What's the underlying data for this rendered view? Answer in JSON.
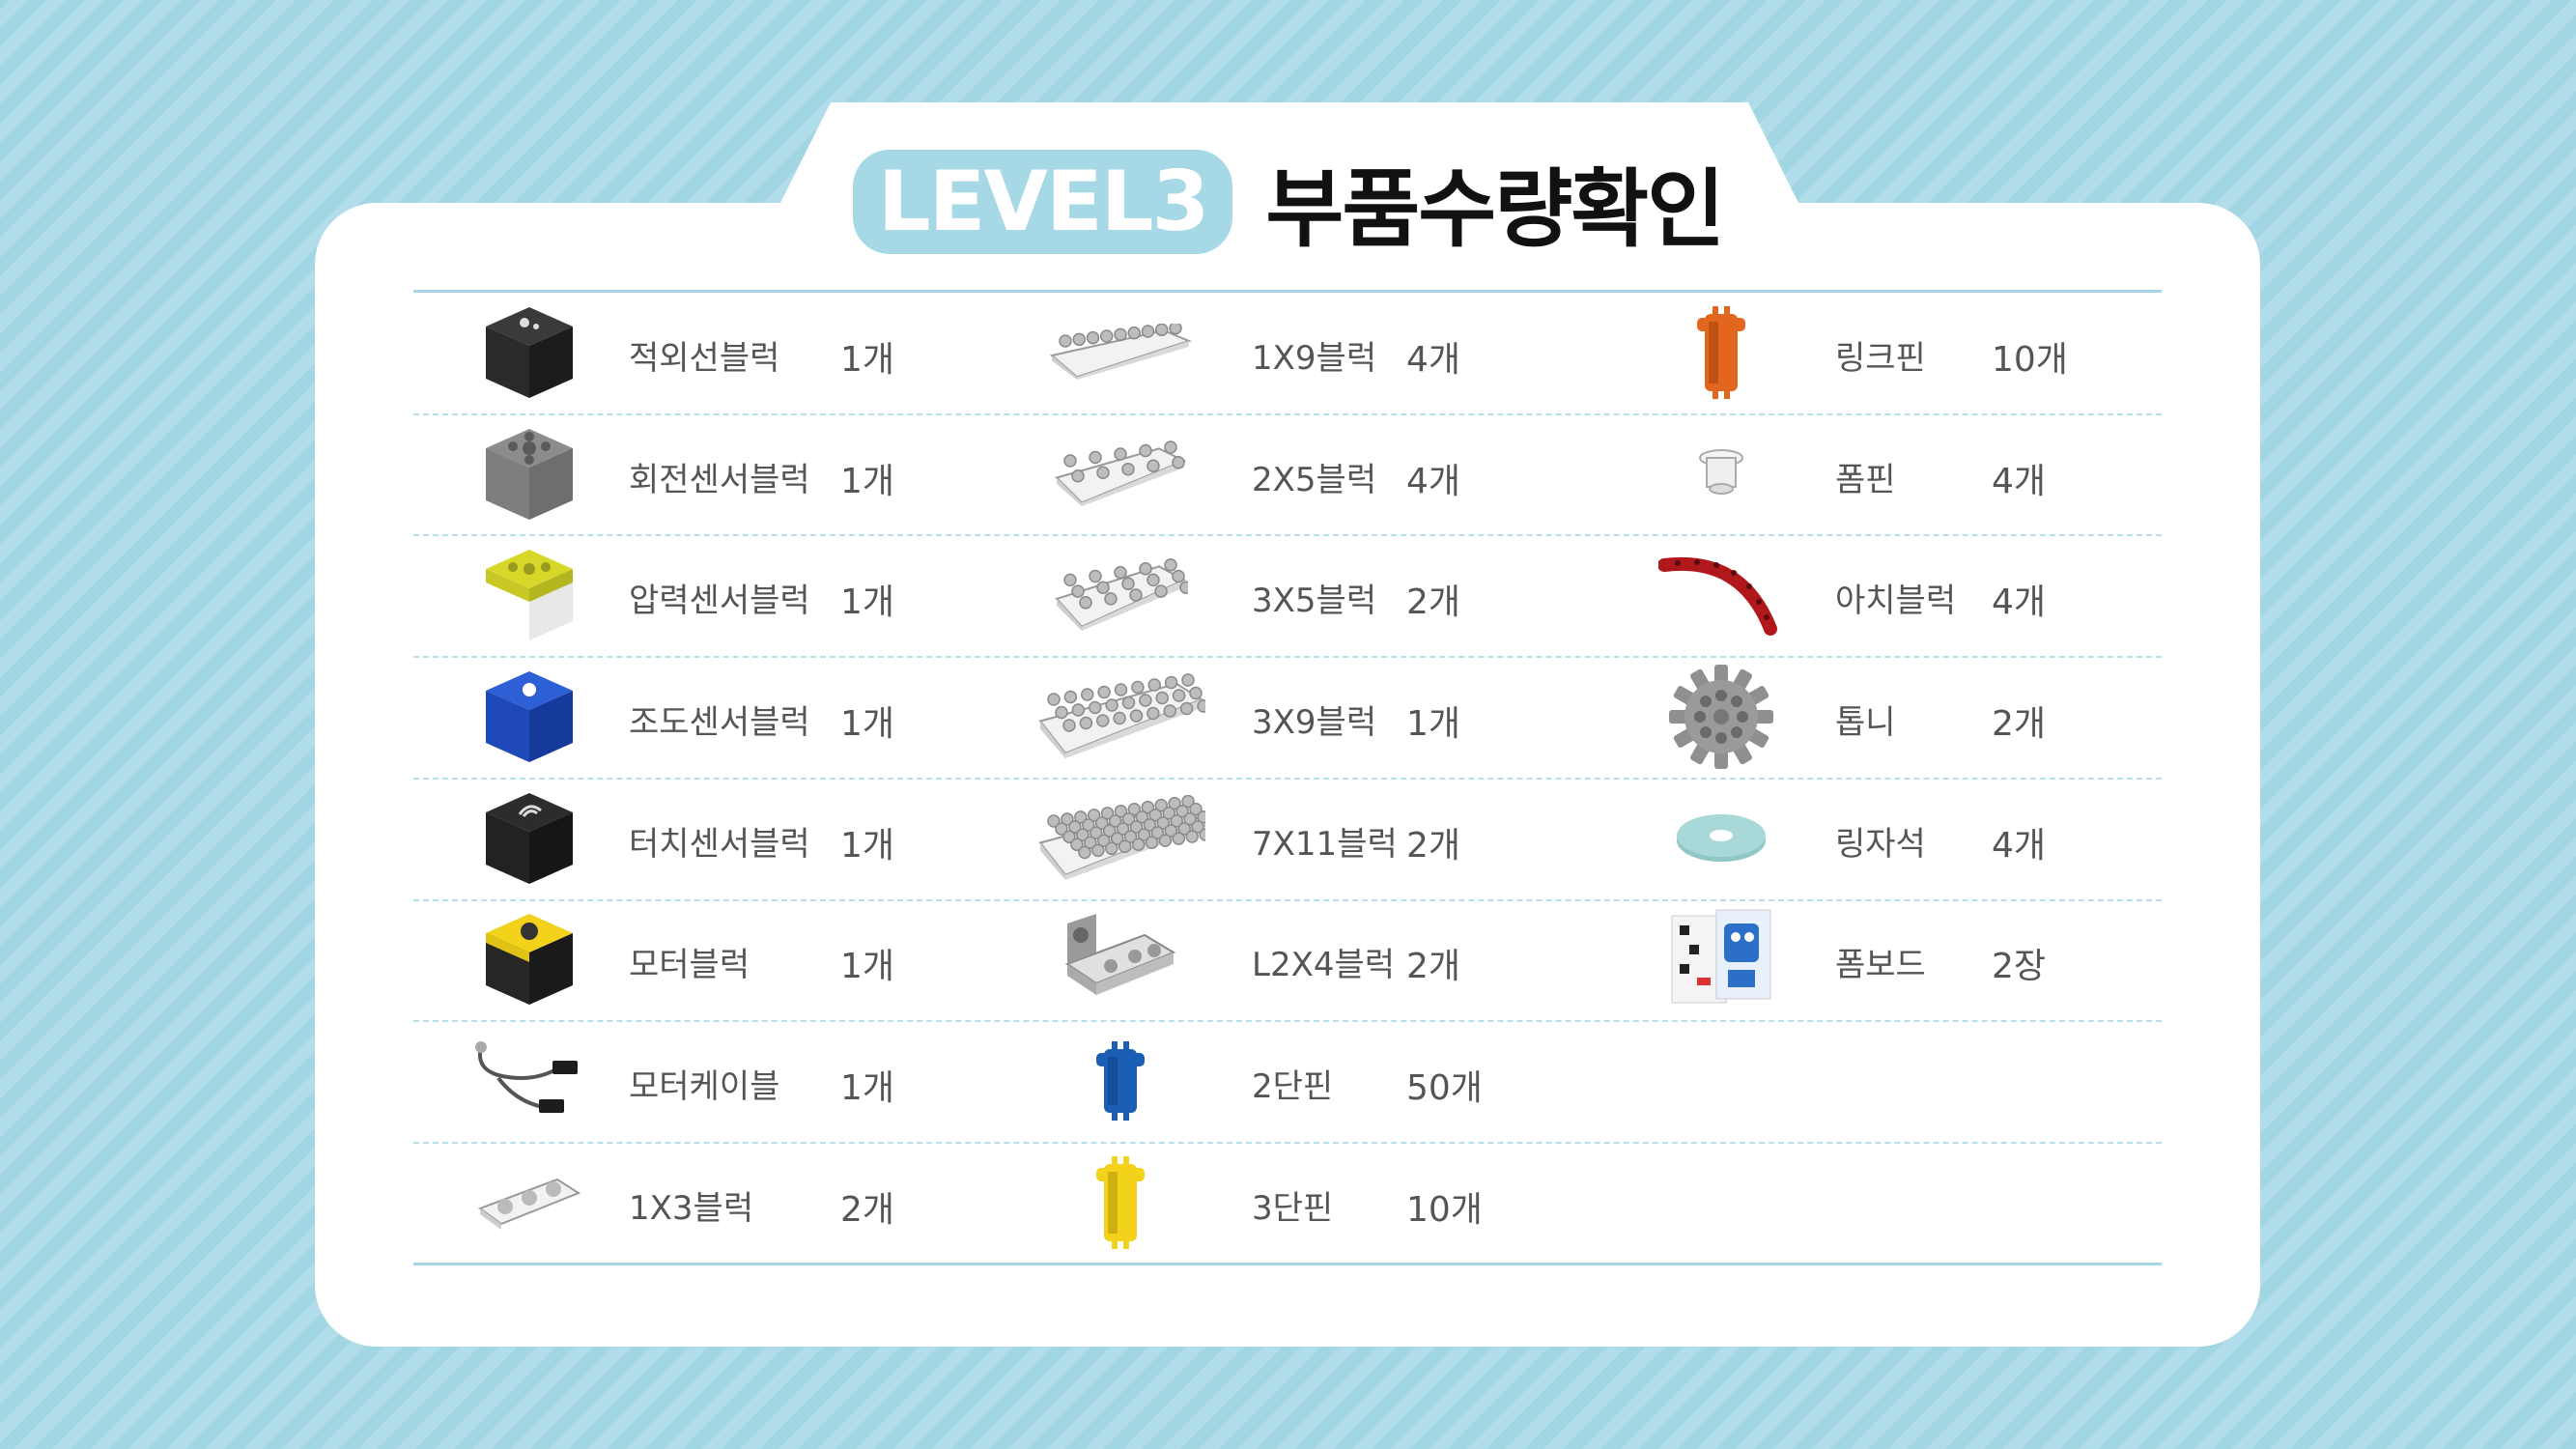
{
  "title": {
    "badge": "LEVEL3",
    "text": "부품수량확인"
  },
  "columns": [
    [
      {
        "name": "적외선블럭",
        "qty": "1개",
        "icon": "ir-sensor-block-icon"
      },
      {
        "name": "회전센서블럭",
        "qty": "1개",
        "icon": "rotation-sensor-block-icon"
      },
      {
        "name": "압력센서블럭",
        "qty": "1개",
        "icon": "pressure-sensor-block-icon"
      },
      {
        "name": "조도센서블럭",
        "qty": "1개",
        "icon": "light-sensor-block-icon"
      },
      {
        "name": "터치센서블럭",
        "qty": "1개",
        "icon": "touch-sensor-block-icon"
      },
      {
        "name": "모터블럭",
        "qty": "1개",
        "icon": "motor-block-icon"
      },
      {
        "name": "모터케이블",
        "qty": "1개",
        "icon": "motor-cable-icon"
      },
      {
        "name": "1X3블럭",
        "qty": "2개",
        "icon": "1x3-block-icon"
      }
    ],
    [
      {
        "name": "1X9블럭",
        "qty": "4개",
        "icon": "1x9-block-icon"
      },
      {
        "name": "2X5블럭",
        "qty": "4개",
        "icon": "2x5-block-icon"
      },
      {
        "name": "3X5블럭",
        "qty": "2개",
        "icon": "3x5-block-icon"
      },
      {
        "name": "3X9블럭",
        "qty": "1개",
        "icon": "3x9-block-icon"
      },
      {
        "name": "7X11블럭",
        "qty": "2개",
        "icon": "7x11-block-icon"
      },
      {
        "name": "L2X4블럭",
        "qty": "2개",
        "icon": "l2x4-block-icon"
      },
      {
        "name": "2단핀",
        "qty": "50개",
        "icon": "2-stage-pin-icon"
      },
      {
        "name": "3단핀",
        "qty": "10개",
        "icon": "3-stage-pin-icon"
      }
    ],
    [
      {
        "name": "링크핀",
        "qty": "10개",
        "icon": "link-pin-icon"
      },
      {
        "name": "폼핀",
        "qty": "4개",
        "icon": "foam-pin-icon"
      },
      {
        "name": "아치블럭",
        "qty": "4개",
        "icon": "arch-block-icon"
      },
      {
        "name": "톱니",
        "qty": "2개",
        "icon": "gear-icon"
      },
      {
        "name": "링자석",
        "qty": "4개",
        "icon": "ring-magnet-icon"
      },
      {
        "name": "폼보드",
        "qty": "2장",
        "icon": "foam-board-icon"
      }
    ]
  ],
  "colors": {
    "accent": "#a6d8e6",
    "orange_pin": "#e2661e",
    "blue_pin": "#1a5fb4",
    "yellow_pin": "#f2d21a",
    "arch_red": "#b0181c"
  }
}
